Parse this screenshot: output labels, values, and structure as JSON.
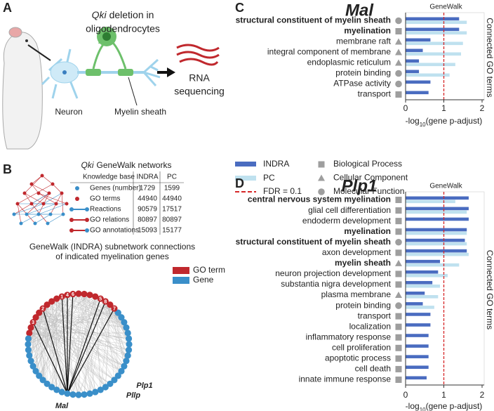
{
  "panel_a": {
    "letter": "A",
    "gene": "Qki",
    "title_line1": "deletion in",
    "title_line2": "oligodendrocytes",
    "neuron": "Neuron",
    "myelin": "Myelin sheath",
    "rna_line1": "RNA",
    "rna_line2": "sequencing"
  },
  "panel_b": {
    "letter": "B",
    "gene": "Qki",
    "title": "GeneWalk networks",
    "table": {
      "header": [
        "Knowledge base",
        "INDRA",
        "PC"
      ],
      "rows": [
        [
          "Genes (number)",
          1729,
          1599
        ],
        [
          "GO terms",
          44940,
          44940
        ],
        [
          "Reactions",
          90579,
          17517
        ],
        [
          "GO relations",
          80897,
          80897
        ],
        [
          "GO annotations",
          15093,
          15177
        ]
      ]
    },
    "subtitle_line1": "GeneWalk (INDRA) subnetwork connections",
    "subtitle_line2": "of indicated myelination genes",
    "legend": [
      {
        "label": "GO term",
        "color": "#c0282d"
      },
      {
        "label": "Gene",
        "color": "#3a8fc9"
      }
    ],
    "node_labels": [
      "1",
      "2",
      "3",
      "4",
      "5",
      "6",
      "7",
      "8"
    ],
    "gene_labels": [
      "Mal",
      "Plp1",
      "Pllp"
    ]
  },
  "chart_data": [
    {
      "type": "bar",
      "orientation": "horizontal",
      "letter": "C",
      "title": "Mal",
      "header": "GeneWalk",
      "categories": [
        "structural constituent of myelin sheath",
        "myelination",
        "membrane raft",
        "integral component of membrane",
        "endoplasmic reticulum",
        "protein binding",
        "ATPase activity",
        "transport"
      ],
      "bold": [
        true,
        true,
        false,
        false,
        false,
        false,
        false,
        false
      ],
      "shapes": [
        "circle",
        "square",
        "triangle",
        "triangle",
        "triangle",
        "circle",
        "circle",
        "square"
      ],
      "series": [
        {
          "name": "INDRA",
          "color": "#4a6cc0",
          "values": [
            1.4,
            1.4,
            0.65,
            0.45,
            0.35,
            0.35,
            0.65,
            0.6
          ]
        },
        {
          "name": "PC",
          "color": "#bfe1ef",
          "values": [
            1.6,
            1.6,
            1.5,
            1.45,
            1.3,
            1.15,
            null,
            null
          ]
        }
      ],
      "reference_line": {
        "value": 1,
        "label": "FDR = 0.1",
        "color": "#d62728"
      },
      "shape_legend": [
        {
          "shape": "square",
          "label": "Biological Process"
        },
        {
          "shape": "triangle",
          "label": "Cellular Component"
        },
        {
          "shape": "circle",
          "label": "Molecular Function"
        }
      ],
      "legend": true,
      "xlim": [
        0,
        2
      ],
      "xticks": [
        0,
        1,
        2
      ],
      "x_label": [
        "-log",
        "10",
        "(gene p-adjust)"
      ],
      "y_label": "Connected GO terms"
    },
    {
      "type": "bar",
      "orientation": "horizontal",
      "letter": "D",
      "title": "Plp1",
      "header": "GeneWalk",
      "categories": [
        "central nervous system myelination",
        "glial cell differentiation",
        "endoderm development",
        "myelination",
        "structural constituent of myelin sheath",
        "axon development",
        "myelin sheath",
        "neuron projection development",
        "substantia nigra development",
        "plasma membrane",
        "protein binding",
        "transport",
        "localization",
        "inflammatory response",
        "cell proliferation",
        "apoptotic process",
        "cell death",
        "innate immune response"
      ],
      "bold": [
        true,
        false,
        false,
        true,
        true,
        false,
        true,
        false,
        false,
        false,
        false,
        false,
        false,
        false,
        false,
        false,
        false,
        false
      ],
      "shapes": [
        "square",
        "square",
        "square",
        "square",
        "circle",
        "square",
        "triangle",
        "square",
        "square",
        "triangle",
        "circle",
        "square",
        "square",
        "square",
        "square",
        "square",
        "square",
        "square"
      ],
      "series": [
        {
          "name": "INDRA",
          "color": "#4a6cc0",
          "values": [
            1.65,
            1.65,
            1.65,
            1.6,
            1.55,
            1.6,
            0.9,
            0.85,
            0.7,
            0.5,
            0.45,
            0.65,
            0.65,
            0.6,
            0.6,
            0.6,
            0.6,
            0.55
          ]
        },
        {
          "name": "PC",
          "color": "#bfe1ef",
          "values": [
            1.3,
            1.6,
            null,
            1.6,
            1.6,
            1.65,
            1.4,
            1.1,
            0.9,
            0.85,
            0.75,
            null,
            null,
            null,
            null,
            null,
            null,
            null
          ]
        }
      ],
      "reference_line": {
        "value": 1,
        "color": "#d62728"
      },
      "legend": false,
      "xlim": [
        0,
        2
      ],
      "xticks": [
        0,
        1,
        2
      ],
      "x_label": [
        "-log",
        "10",
        "(gene p-adjust)"
      ],
      "y_label": "Connected GO terms"
    }
  ]
}
